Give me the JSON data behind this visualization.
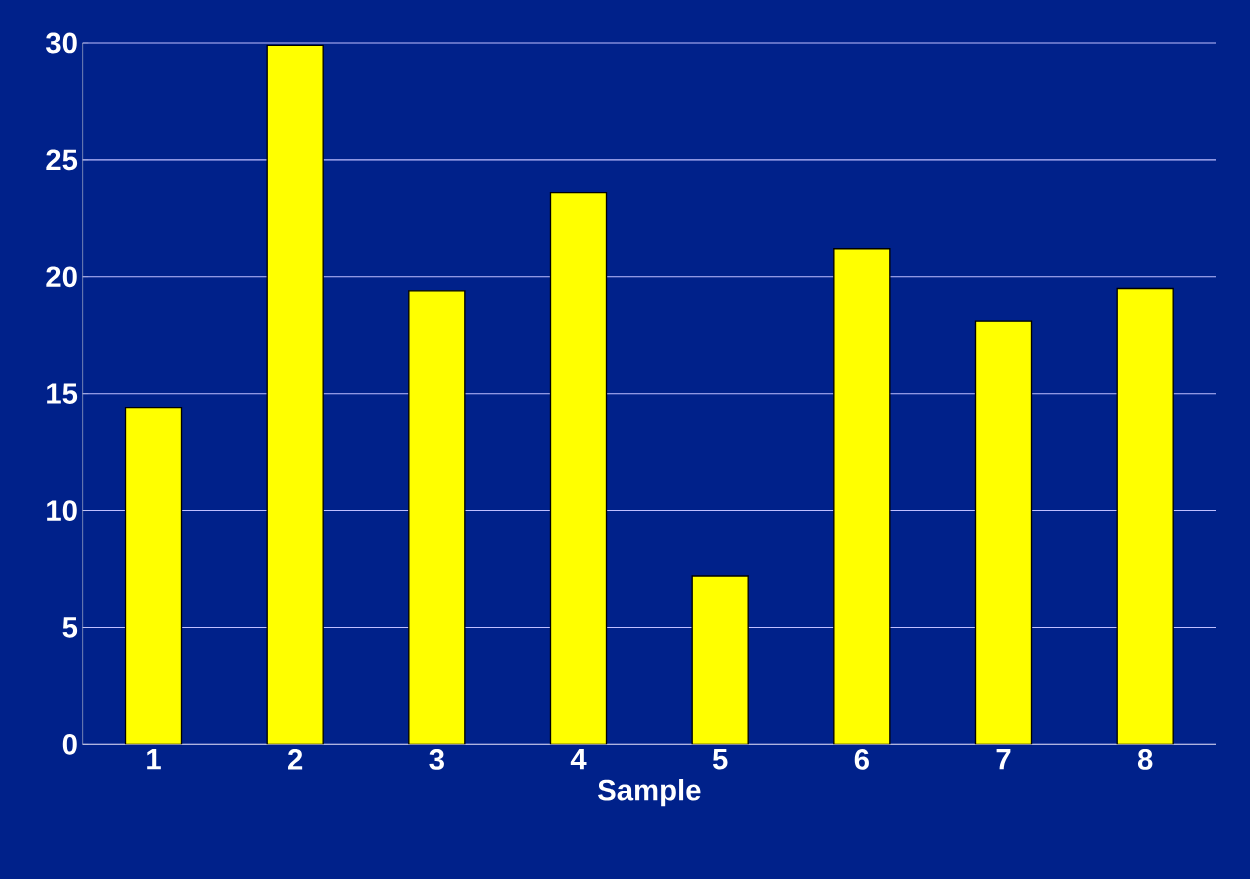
{
  "chart_data": {
    "type": "bar",
    "xlabel": "Sample",
    "categories": [
      "1",
      "2",
      "3",
      "4",
      "5",
      "6",
      "7",
      "8"
    ],
    "values": [
      14.4,
      29.9,
      19.4,
      23.6,
      7.2,
      21.2,
      18.1,
      19.5
    ],
    "color": "#ffff00",
    "ylim": [
      0,
      30
    ],
    "yticks": [
      0,
      5,
      10,
      15,
      20,
      25,
      30
    ],
    "grid": "y"
  }
}
